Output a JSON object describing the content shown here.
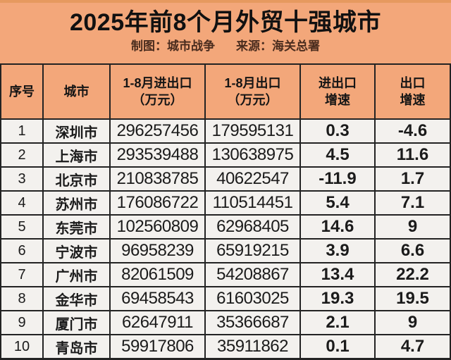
{
  "header": {
    "title": "2025年前8个月外贸十强城市",
    "credit": "制图：城市战争",
    "source": "来源：海关总署"
  },
  "table": {
    "columns_display": [
      "序号",
      "城市",
      "1-8月进出口\n（万元）",
      "1-8月出口\n（万元）",
      "进出口\n增速",
      "出口\n增速"
    ]
  },
  "chart_data": {
    "type": "table",
    "title": "2025年前8个月外贸十强城市",
    "subtitle": "制图：城市战争 来源：海关总署",
    "columns": [
      "序号",
      "城市",
      "1-8月进出口（万元）",
      "1-8月出口（万元）",
      "进出口增速",
      "出口增速"
    ],
    "rows": [
      [
        1,
        "深圳市",
        296257456,
        179595131,
        0.3,
        -4.6
      ],
      [
        2,
        "上海市",
        293539488,
        130638975,
        4.5,
        11.6
      ],
      [
        3,
        "北京市",
        210838785,
        40622547,
        -11.9,
        1.7
      ],
      [
        4,
        "苏州市",
        176086722,
        110514451,
        5.4,
        7.1
      ],
      [
        5,
        "东莞市",
        102560809,
        62968405,
        14.6,
        9
      ],
      [
        6,
        "宁波市",
        96958239,
        65919215,
        3.9,
        6.6
      ],
      [
        7,
        "广州市",
        82061509,
        54208867,
        13.4,
        22.2
      ],
      [
        8,
        "金华市",
        69458543,
        61603025,
        19.3,
        19.5
      ],
      [
        9,
        "厦门市",
        62647911,
        35366687,
        2.1,
        9
      ],
      [
        10,
        "青岛市",
        59917806,
        35911862,
        0.1,
        4.7
      ]
    ],
    "value_unit": "万元",
    "growth_unit": "%"
  },
  "colors": {
    "background": "#f3a77a",
    "row_background": "#f3f1ee",
    "border": "#232323",
    "title_text": "#111111",
    "subtitle_text": "#4a2c1e"
  }
}
